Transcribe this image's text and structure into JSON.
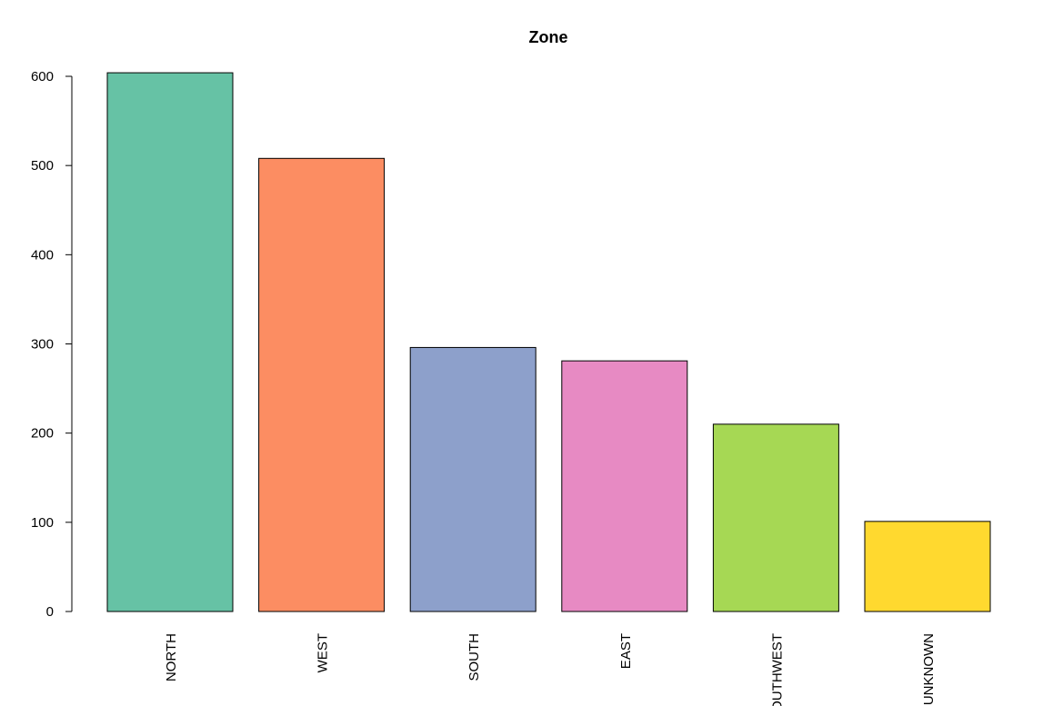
{
  "chart_data": {
    "type": "bar",
    "title": "Zone",
    "xlabel": "",
    "ylabel": "",
    "categories": [
      "NORTH",
      "WEST",
      "SOUTH",
      "EAST",
      "SOUTHWEST",
      "UNKNOWN"
    ],
    "values": [
      604,
      508,
      296,
      281,
      210,
      101
    ],
    "colors": [
      "#66c2a5",
      "#fc8d62",
      "#8da0cb",
      "#e78ac3",
      "#a6d854",
      "#ffd92f"
    ],
    "ylim": [
      0,
      600
    ],
    "yticks": [
      0,
      100,
      200,
      300,
      400,
      500,
      600
    ],
    "grid": false,
    "legend": "none",
    "x_tick_label_rotation": "vertical"
  }
}
